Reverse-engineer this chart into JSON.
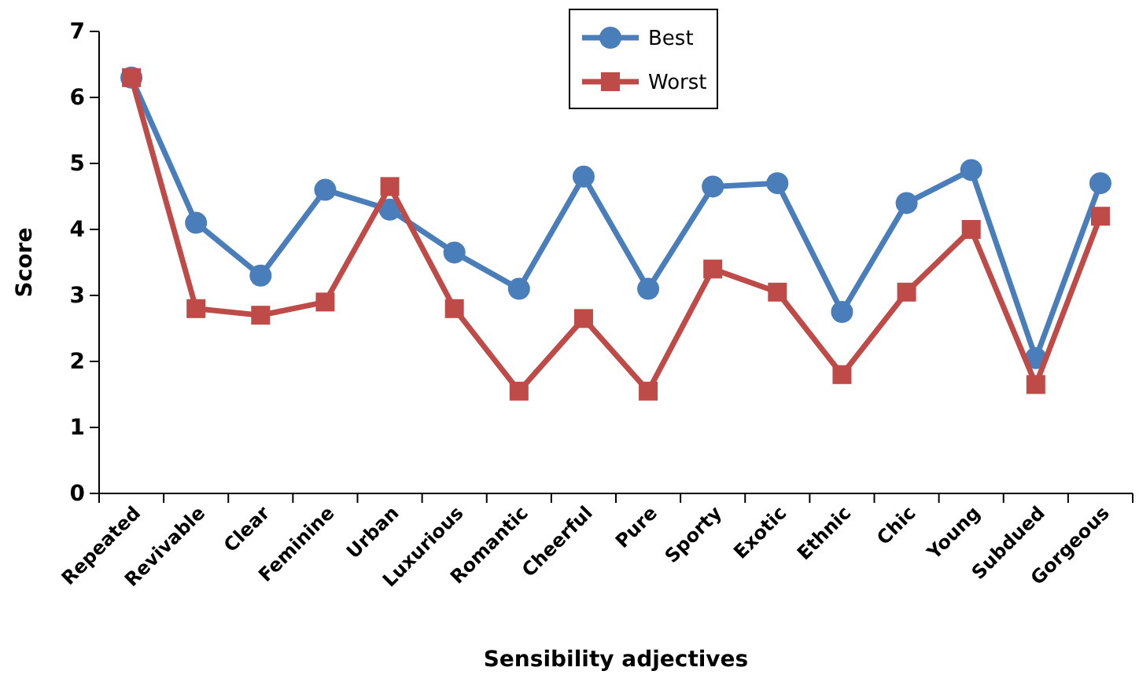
{
  "chart_data": {
    "type": "line",
    "xlabel": "Sensibility adjectives",
    "ylabel": "Score",
    "categories": [
      "Repeated",
      "Revivable",
      "Clear",
      "Feminine",
      "Urban",
      "Luxurious",
      "Romantic",
      "Cheerful",
      "Pure",
      "Sporty",
      "Exotic",
      "Ethnic",
      "Chic",
      "Young",
      "Subdued",
      "Gorgeous"
    ],
    "series": [
      {
        "name": "Best",
        "color": "#4a7ebb",
        "marker": "circle",
        "values": [
          6.3,
          4.1,
          3.3,
          4.6,
          4.3,
          3.65,
          3.1,
          4.8,
          3.1,
          4.65,
          4.7,
          2.75,
          4.4,
          4.9,
          2.05,
          4.7
        ]
      },
      {
        "name": "Worst",
        "color": "#be4b48",
        "marker": "square",
        "values": [
          6.3,
          2.8,
          2.7,
          2.9,
          4.65,
          2.8,
          1.55,
          2.65,
          1.55,
          3.4,
          3.05,
          1.8,
          3.05,
          4.0,
          1.65,
          4.2
        ]
      }
    ],
    "ylim": [
      0,
      7
    ],
    "yticks": [
      0,
      1,
      2,
      3,
      4,
      5,
      6,
      7
    ],
    "grid": false,
    "legend": "top"
  }
}
